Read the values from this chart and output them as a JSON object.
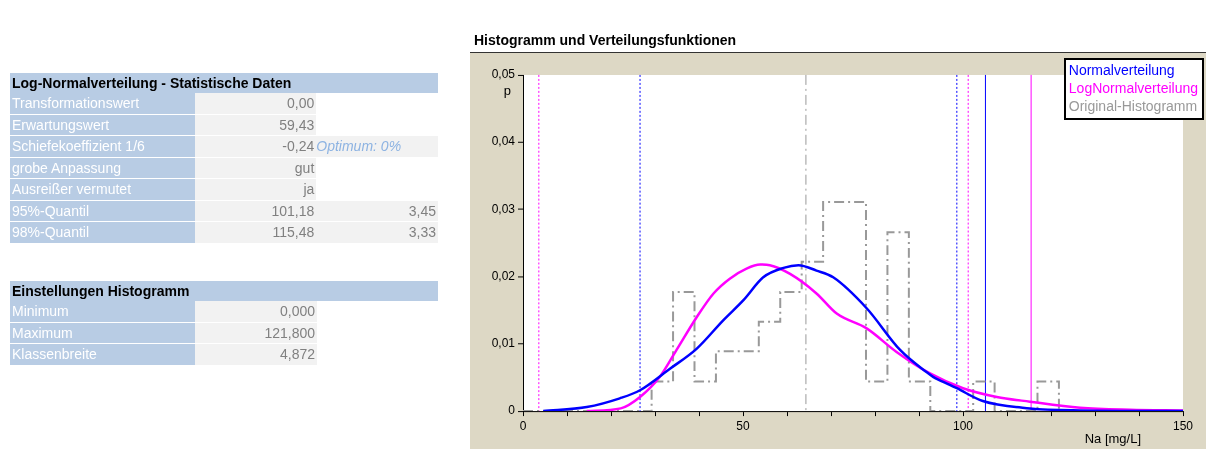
{
  "chart_data": [
    {
      "type": "other",
      "title": "Log-Normalverteilung - Statistische Daten",
      "y_categories": [
        "Transformationswert",
        "Erwartungswert",
        "Schiefekoeffizient 1/6",
        "grobe Anpassung",
        "Ausreißer vermutet",
        "95%-Quantil",
        "98%-Quantil"
      ],
      "cell_labels": [
        [
          "0,00",
          null
        ],
        [
          "59,43",
          null
        ],
        [
          "-0,24",
          "Optimum: 0%"
        ],
        [
          "gut",
          null
        ],
        [
          "ja",
          null
        ],
        [
          "101,18",
          "3,45"
        ],
        [
          "115,48",
          "3,33"
        ]
      ]
    },
    {
      "type": "other",
      "title": "Einstellungen Histogramm",
      "y_categories": [
        "Minimum",
        "Maximum",
        "Klassenbreite"
      ],
      "cell_labels": [
        [
          "0,000"
        ],
        [
          "121,800"
        ],
        [
          "4,872"
        ]
      ]
    },
    {
      "type": "line",
      "title": "Histogramm und Verteilungsfunktionen",
      "xlabel": "Na [mg/L]",
      "ylabel": "p",
      "xlim": [
        0,
        150
      ],
      "ylim": [
        0,
        0.05
      ],
      "xticks": [
        0,
        {
          "value": 10,
          "label": null
        },
        {
          "value": 20,
          "label": null
        },
        {
          "value": 30,
          "label": null
        },
        {
          "value": 40,
          "label": null
        },
        50,
        {
          "value": 60,
          "label": null
        },
        {
          "value": 70,
          "label": null
        },
        {
          "value": 80,
          "label": null
        },
        {
          "value": 90,
          "label": null
        },
        100,
        {
          "value": 110,
          "label": null
        },
        {
          "value": 120,
          "label": null
        },
        {
          "value": 130,
          "label": null
        },
        {
          "value": 140,
          "label": null
        },
        150
      ],
      "yticks": [
        0,
        {
          "value": 0.01,
          "label": "0,01"
        },
        {
          "value": 0.02,
          "label": "0,02"
        },
        {
          "value": 0.03,
          "label": "0,03"
        },
        {
          "value": 0.04,
          "label": "0,04"
        },
        {
          "value": 0.05,
          "label": "0,05"
        }
      ],
      "grid": false,
      "legend": "top right",
      "marker": "none",
      "series": [
        {
          "name": "Normalverteilung",
          "type": "line",
          "color": "#0000ff",
          "x": [
            4.6,
            14.5,
            22,
            26.6,
            33.4,
            39.5,
            45.5,
            50.1,
            54.6,
            59.2,
            62.6,
            66.7,
            70.5,
            78.1,
            85.7,
            91.7,
            93.2,
            97,
            98.6,
            104.5,
            115.2,
            126.6,
            150
          ],
          "values": [
            0,
            0.0006,
            0.0019,
            0.0031,
            0.0063,
            0.0093,
            0.0135,
            0.0165,
            0.0199,
            0.0213,
            0.0217,
            0.0209,
            0.0199,
            0.0153,
            0.0091,
            0.0058,
            0.0051,
            0.0039,
            0.0034,
            0.0015,
            0.0004,
            0.0001,
            0
          ]
        },
        {
          "name": "LogNormalverteilung",
          "type": "line",
          "color": "#ff00ff",
          "x": [
            14.5,
            22.2,
            26.6,
            31.1,
            34.9,
            39.5,
            43.3,
            47,
            50.8,
            53.9,
            56.1,
            60.7,
            66.7,
            71.3,
            78.1,
            84.9,
            92.5,
            100,
            107.7,
            115.2,
            126.6,
            138,
            150
          ],
          "values": [
            0,
            0.0004,
            0.0021,
            0.0051,
            0.0091,
            0.014,
            0.0175,
            0.0197,
            0.0212,
            0.0218,
            0.0217,
            0.0204,
            0.0175,
            0.0145,
            0.0123,
            0.0088,
            0.0056,
            0.0034,
            0.0021,
            0.0014,
            0.0005,
            0.0002,
            0.0001
          ]
        },
        {
          "name": "Original-Histogramm",
          "type": "histogram",
          "color": "#999999",
          "line_style": "dashed",
          "bins": [
            0,
            4.872,
            9.744,
            14.616,
            19.488,
            24.36,
            29.232,
            34.104,
            38.976,
            43.848,
            48.72,
            53.592,
            58.464,
            63.336,
            68.208,
            73.08,
            77.952,
            82.824,
            87.696,
            92.568,
            97.44,
            102.312,
            107.184,
            112.056,
            116.928,
            121.8
          ],
          "values": [
            0,
            0,
            0,
            0,
            0,
            0,
            0.0044,
            0.0177,
            0.0044,
            0.0089,
            0.0089,
            0.0133,
            0.0177,
            0.0222,
            0.0311,
            0.0311,
            0.0044,
            0.0266,
            0.0044,
            0,
            0,
            0.0044,
            0,
            0,
            0.0044
          ]
        }
      ],
      "ref_lines": [
        {
          "axis": "x",
          "value": 3.6,
          "color": "#ff00ff",
          "line_style": "dotted"
        },
        {
          "axis": "x",
          "value": 26.6,
          "color": "#0000ff",
          "line_style": "dotted"
        },
        {
          "axis": "x",
          "value": 64.3,
          "color": "#999999",
          "line_style": "dashed"
        },
        {
          "axis": "x",
          "value": 98.6,
          "color": "#0000ff",
          "line_style": "dotted"
        },
        {
          "axis": "x",
          "value": 101.18,
          "color": "#ff00ff",
          "line_style": "dotted"
        },
        {
          "axis": "x",
          "value": 105.1,
          "color": "#0000ff",
          "line_style": "solid"
        },
        {
          "axis": "x",
          "value": 115.48,
          "color": "#ff00ff",
          "line_style": "solid"
        }
      ]
    }
  ]
}
